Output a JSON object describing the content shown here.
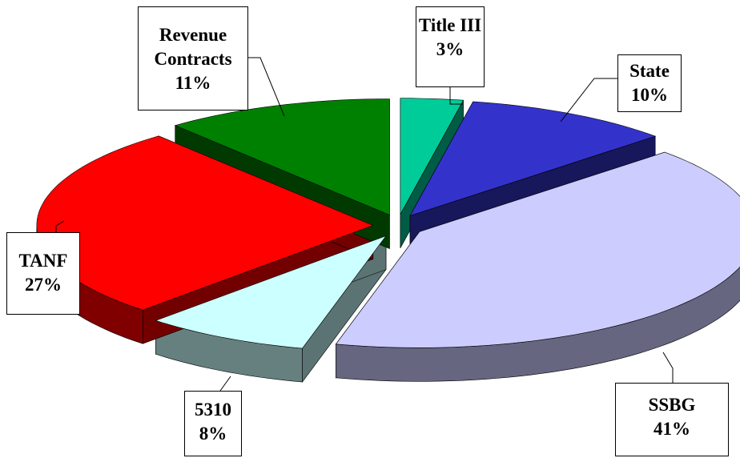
{
  "chart_data": {
    "type": "pie",
    "categories": [
      "Title III",
      "State",
      "SSBG",
      "5310",
      "TANF",
      "Revenue Contracts"
    ],
    "values": [
      3,
      10,
      41,
      8,
      27,
      11
    ],
    "value_labels": [
      "3%",
      "10%",
      "41%",
      "8%",
      "27%",
      "11%"
    ],
    "colors": [
      "#00cc99",
      "#3333cc",
      "#ccccff",
      "#ccffff",
      "#ff0000",
      "#008000"
    ]
  }
}
